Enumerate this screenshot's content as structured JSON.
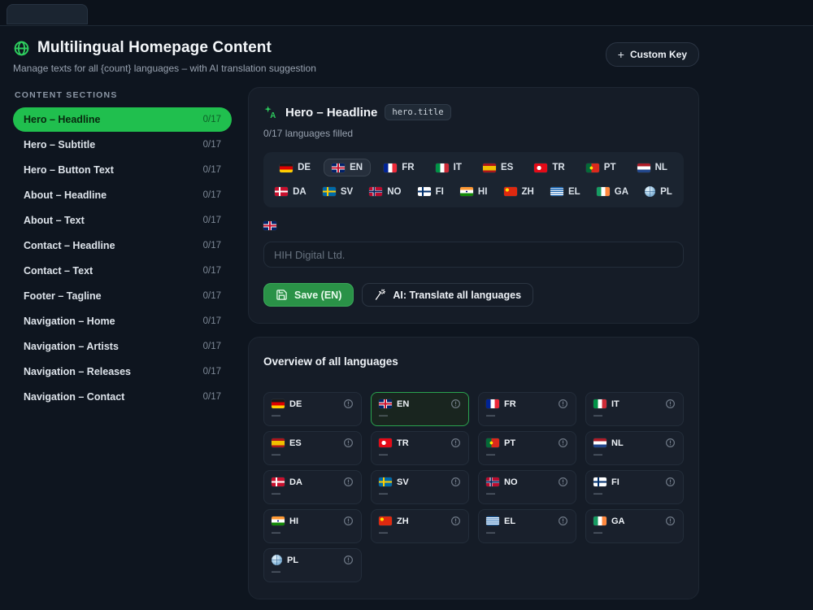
{
  "header": {
    "title": "Multilingual Homepage Content",
    "subtitle": "Manage texts for all {count} languages – with AI translation suggestion",
    "custom_key_button": "Custom Key",
    "plus": "+"
  },
  "sidebar": {
    "heading": "CONTENT SECTIONS",
    "items": [
      {
        "label": "Hero – Headline",
        "count": "0/17",
        "selected": true
      },
      {
        "label": "Hero – Subtitle",
        "count": "0/17",
        "selected": false
      },
      {
        "label": "Hero – Button Text",
        "count": "0/17",
        "selected": false
      },
      {
        "label": "About – Headline",
        "count": "0/17",
        "selected": false
      },
      {
        "label": "About – Text",
        "count": "0/17",
        "selected": false
      },
      {
        "label": "Contact – Headline",
        "count": "0/17",
        "selected": false
      },
      {
        "label": "Contact – Text",
        "count": "0/17",
        "selected": false
      },
      {
        "label": "Footer – Tagline",
        "count": "0/17",
        "selected": false
      },
      {
        "label": "Navigation – Home",
        "count": "0/17",
        "selected": false
      },
      {
        "label": "Navigation – Artists",
        "count": "0/17",
        "selected": false
      },
      {
        "label": "Navigation – Releases",
        "count": "0/17",
        "selected": false
      },
      {
        "label": "Navigation – Contact",
        "count": "0/17",
        "selected": false
      }
    ]
  },
  "editor": {
    "section_title": "Hero – Headline",
    "key_badge": "hero.title",
    "fill_status": "0/17 languages filled",
    "languages": [
      {
        "code": "DE",
        "flag": "de",
        "selected": false
      },
      {
        "code": "EN",
        "flag": "gb",
        "selected": true
      },
      {
        "code": "FR",
        "flag": "fr",
        "selected": false
      },
      {
        "code": "IT",
        "flag": "it",
        "selected": false
      },
      {
        "code": "ES",
        "flag": "es",
        "selected": false
      },
      {
        "code": "TR",
        "flag": "tr",
        "selected": false
      },
      {
        "code": "PT",
        "flag": "pt",
        "selected": false
      },
      {
        "code": "NL",
        "flag": "nl",
        "selected": false
      },
      {
        "code": "DA",
        "flag": "da",
        "selected": false
      },
      {
        "code": "SV",
        "flag": "sv",
        "selected": false
      },
      {
        "code": "NO",
        "flag": "no",
        "selected": false
      },
      {
        "code": "FI",
        "flag": "fi",
        "selected": false
      },
      {
        "code": "HI",
        "flag": "in",
        "selected": false
      },
      {
        "code": "ZH",
        "flag": "cn",
        "selected": false
      },
      {
        "code": "EL",
        "flag": "gr",
        "selected": false
      },
      {
        "code": "GA",
        "flag": "ie",
        "selected": false
      },
      {
        "code": "PL",
        "flag": "globe",
        "selected": false
      }
    ],
    "active_language_flag": "gb",
    "input_value": "",
    "input_placeholder": "HIH Digital Ltd.",
    "save_button": "Save (EN)",
    "ai_button": "AI: Translate all languages"
  },
  "overview": {
    "title": "Overview of all languages",
    "cards": [
      {
        "code": "DE",
        "flag": "de",
        "value": "—",
        "selected": false
      },
      {
        "code": "EN",
        "flag": "gb",
        "value": "—",
        "selected": true
      },
      {
        "code": "FR",
        "flag": "fr",
        "value": "—",
        "selected": false
      },
      {
        "code": "IT",
        "flag": "it",
        "value": "—",
        "selected": false
      },
      {
        "code": "ES",
        "flag": "es",
        "value": "—",
        "selected": false
      },
      {
        "code": "TR",
        "flag": "tr",
        "value": "—",
        "selected": false
      },
      {
        "code": "PT",
        "flag": "pt",
        "value": "—",
        "selected": false
      },
      {
        "code": "NL",
        "flag": "nl",
        "value": "—",
        "selected": false
      },
      {
        "code": "DA",
        "flag": "da",
        "value": "—",
        "selected": false
      },
      {
        "code": "SV",
        "flag": "sv",
        "value": "—",
        "selected": false
      },
      {
        "code": "NO",
        "flag": "no",
        "value": "—",
        "selected": false
      },
      {
        "code": "FI",
        "flag": "fi",
        "value": "—",
        "selected": false
      },
      {
        "code": "HI",
        "flag": "in",
        "value": "—",
        "selected": false
      },
      {
        "code": "ZH",
        "flag": "cn",
        "value": "—",
        "selected": false
      },
      {
        "code": "EL",
        "flag": "gr",
        "value": "—",
        "selected": false
      },
      {
        "code": "GA",
        "flag": "ie",
        "value": "—",
        "selected": false
      },
      {
        "code": "PL",
        "flag": "globe",
        "value": "—",
        "selected": false
      }
    ]
  },
  "icons": {
    "header": "globe-icon",
    "section": "translate-icon",
    "save": "save-icon",
    "ai": "wand-icon",
    "card_status": "alert-circle-icon"
  },
  "colors": {
    "accent_green": "#20bf4e",
    "icon_green": "#2ecc5e",
    "save_green": "#2a9247",
    "page_bg": "#0e151f",
    "panel_bg": "#151c27",
    "muted_text": "#98a2b0"
  }
}
